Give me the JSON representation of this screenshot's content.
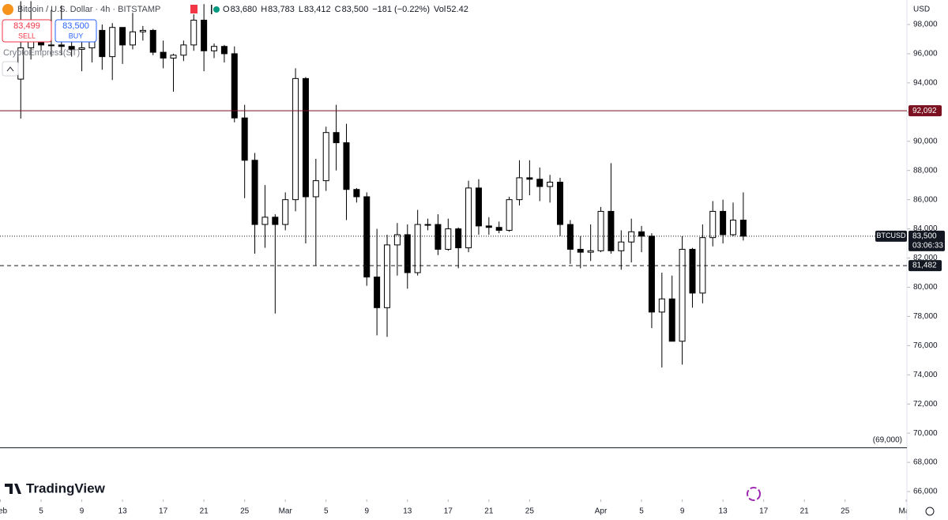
{
  "chart_data": {
    "type": "candlestick",
    "title": "Bitcoin / U.S. Dollar · 4h · BITSTAMP",
    "ohlc_legend": {
      "o_label": "O",
      "open": "83,680",
      "h_label": "H",
      "high": "83,783",
      "l_label": "L",
      "low": "83,412",
      "c_label": "C",
      "close": "83,500",
      "change": "−181 (−0.22%)",
      "vol_label": "Vol",
      "volume": "52.42"
    },
    "sell": {
      "price": "83,499",
      "label": "SELL",
      "color": "#f23645"
    },
    "buy": {
      "price": "83,500",
      "label": "BUY",
      "color": "#2962ff"
    },
    "indicator": "CryptoEmpress(ST)",
    "currency": "USD",
    "brand": "TradingView",
    "countdown": "03:06:33",
    "up_color": "#ffffff",
    "down_color": "#000000",
    "border_color": "#000000",
    "x": [
      3,
      4,
      5,
      6,
      7,
      8,
      9,
      10,
      11,
      12,
      13,
      14,
      15,
      16,
      17,
      18,
      19,
      20,
      21,
      22,
      23,
      24,
      25,
      26,
      27,
      28,
      29,
      30,
      31,
      32,
      33,
      34,
      35,
      36,
      37,
      38,
      39,
      40,
      41,
      42,
      43,
      44,
      45,
      46,
      47,
      48,
      49,
      50,
      51,
      52,
      53,
      54,
      55,
      56,
      57,
      58,
      59,
      60,
      61,
      62,
      63,
      64,
      65,
      66,
      67,
      68,
      69,
      70,
      71,
      72,
      73,
      74
    ],
    "series": [
      {
        "name": "BTCUSD",
        "open": [
          94260,
          96400,
          97800,
          96600,
          96600,
          96500,
          96300,
          96400,
          97600,
          95800,
          97800,
          96600,
          97500,
          97600,
          96100,
          95700,
          95900,
          96600,
          98300,
          96200,
          96500,
          96000,
          91600,
          88700,
          84300,
          84800,
          84300,
          86000,
          94300,
          86200,
          87300,
          90600,
          89900,
          86700,
          86200,
          80700,
          78600,
          82900,
          83600,
          81000,
          84300,
          84300,
          82600,
          84000,
          82700,
          86800,
          84200,
          84100,
          83900,
          86000,
          87500,
          87400,
          86900,
          87200,
          84300,
          82600,
          82400,
          82500,
          85200,
          82500,
          83100,
          83800,
          83500,
          78300,
          79200,
          76300,
          82600,
          79600,
          83400,
          85200,
          83600,
          84600
        ],
        "high": [
          99600,
          99600,
          98300,
          99000,
          99300,
          96900,
          97300,
          98300,
          98000,
          98100,
          97800,
          98800,
          97900,
          97700,
          96900,
          96000,
          96900,
          98700,
          99400,
          96700,
          96600,
          96500,
          92500,
          89200,
          87000,
          85000,
          86500,
          95000,
          94400,
          88800,
          91000,
          92500,
          91200,
          86800,
          86500,
          84000,
          83600,
          84400,
          84300,
          85300,
          84700,
          85000,
          84700,
          84100,
          87300,
          87400,
          84800,
          84500,
          86200,
          88700,
          88700,
          88200,
          87700,
          87500,
          84600,
          83500,
          84300,
          85500,
          88500,
          83900,
          84700,
          84200,
          83700,
          81000,
          80800,
          83500,
          82700,
          84300,
          85900,
          86000,
          85800,
          86500
        ],
        "low": [
          91560,
          95600,
          96200,
          95800,
          95900,
          95800,
          94800,
          95400,
          94900,
          94200,
          95300,
          96300,
          96900,
          95900,
          95000,
          93400,
          95500,
          96200,
          94800,
          95700,
          95400,
          91300,
          86100,
          82300,
          82700,
          78200,
          83900,
          85200,
          83000,
          81500,
          86600,
          88000,
          84600,
          85800,
          80100,
          76700,
          76600,
          80800,
          79900,
          80800,
          83900,
          82200,
          82500,
          81300,
          82400,
          83600,
          83600,
          83700,
          83800,
          85600,
          86300,
          85900,
          85800,
          83500,
          81600,
          81300,
          81800,
          82400,
          82300,
          81200,
          81700,
          82400,
          77200,
          74500,
          76300,
          74700,
          78600,
          78900,
          82800,
          83000,
          83500,
          83200
        ],
        "close": [
          96400,
          97800,
          96600,
          96600,
          96500,
          96300,
          96400,
          97600,
          95800,
          97800,
          96600,
          97500,
          97600,
          96100,
          95700,
          95900,
          96600,
          98300,
          96200,
          96500,
          96000,
          91600,
          88700,
          84300,
          84800,
          84300,
          86000,
          94300,
          86200,
          87300,
          90600,
          89900,
          86700,
          86200,
          80700,
          78600,
          82900,
          83600,
          81000,
          84300,
          84300,
          82600,
          84000,
          82700,
          86800,
          84200,
          84100,
          83900,
          86000,
          87500,
          87400,
          86900,
          87200,
          84300,
          82600,
          82400,
          82500,
          85200,
          82500,
          83100,
          83800,
          83500,
          78300,
          79200,
          76300,
          82600,
          79600,
          83400,
          85200,
          83600,
          84600,
          83500
        ]
      }
    ],
    "xlim": [
      1,
      90
    ],
    "xticks": [
      {
        "value": 1,
        "label": "Feb"
      },
      {
        "value": 5,
        "label": "5"
      },
      {
        "value": 9,
        "label": "9"
      },
      {
        "value": 13,
        "label": "13"
      },
      {
        "value": 17,
        "label": "17"
      },
      {
        "value": 21,
        "label": "21"
      },
      {
        "value": 25,
        "label": "25"
      },
      {
        "value": 29,
        "label": "Mar"
      },
      {
        "value": 33,
        "label": "5"
      },
      {
        "value": 37,
        "label": "9"
      },
      {
        "value": 41,
        "label": "13"
      },
      {
        "value": 45,
        "label": "17"
      },
      {
        "value": 49,
        "label": "21"
      },
      {
        "value": 53,
        "label": "25"
      },
      {
        "value": 60,
        "label": "Apr"
      },
      {
        "value": 64,
        "label": "5"
      },
      {
        "value": 68,
        "label": "9"
      },
      {
        "value": 72,
        "label": "13"
      },
      {
        "value": 76,
        "label": "17"
      },
      {
        "value": 80,
        "label": "21"
      },
      {
        "value": 84,
        "label": "25"
      },
      {
        "value": 90,
        "label": "May"
      }
    ],
    "ylim": [
      65460,
      99680
    ],
    "yticks": [
      {
        "value": 66000,
        "label": "66,000"
      },
      {
        "value": 68000,
        "label": "68,000"
      },
      {
        "value": 70000,
        "label": "70,000"
      },
      {
        "value": 72000,
        "label": "72,000"
      },
      {
        "value": 74000,
        "label": "74,000"
      },
      {
        "value": 76000,
        "label": "76,000"
      },
      {
        "value": 78000,
        "label": "78,000"
      },
      {
        "value": 80000,
        "label": "80,000"
      },
      {
        "value": 82000,
        "label": "82,000"
      },
      {
        "value": 84000,
        "label": "84,000"
      },
      {
        "value": 86000,
        "label": "86,000"
      },
      {
        "value": 88000,
        "label": "88,000"
      },
      {
        "value": 90000,
        "label": "90,000"
      },
      {
        "value": 92000,
        "label": "92,000"
      },
      {
        "value": 94000,
        "label": "94,000"
      },
      {
        "value": 96000,
        "label": "96,000"
      },
      {
        "value": 98000,
        "label": "98,000"
      }
    ],
    "levels": [
      {
        "value": 92092,
        "label": "92,092",
        "style": "solid",
        "color": "#7a1020",
        "label_style": "box"
      },
      {
        "value": 81482,
        "label": "81,482",
        "style": "dashed",
        "color": "#131722",
        "label_style": "box"
      },
      {
        "value": 83500,
        "label": "83,500",
        "style": "dotted",
        "color": "#131722",
        "label_style": "current"
      },
      {
        "value": 69000,
        "label": "(69,000)",
        "style": "solid",
        "color": "#131722",
        "label_style": "plain"
      }
    ]
  }
}
